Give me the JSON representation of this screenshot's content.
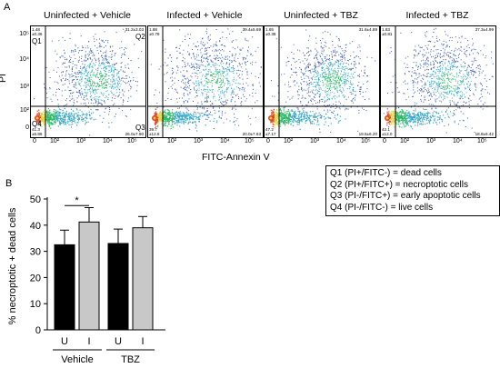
{
  "panel_a": {
    "label": "A",
    "y_axis_label": "PI",
    "x_axis_label": "FITC-Annexin V",
    "y_ticks": [
      "10⁵",
      "10⁴",
      "10³",
      "10²",
      "0"
    ],
    "x_ticks": [
      "0",
      "10²",
      "10³",
      "10⁴",
      "10⁵"
    ],
    "plots": [
      {
        "title": "Uninfected + Vehicle",
        "q1_stats": "1.48\n±0.36",
        "q2_stats": "31.2±3.03",
        "q3_stats": "26.0±7.90",
        "q4_stats": "41.3\n±6.86"
      },
      {
        "title": "Infected + Vehicle",
        "q1_stats": "1.88\n±0.79",
        "q2_stats": "39.4±5.69",
        "q3_stats": "20.0±7.63",
        "q4_stats": "39.7\n±12.8"
      },
      {
        "title": "Uninfected + TBZ",
        "q1_stats": "1.65\n±0.38",
        "q2_stats": "31.6±4.89",
        "q3_stats": "19.5±6.20",
        "q4_stats": "47.2\n±7.17"
      },
      {
        "title": "Infected + TBZ",
        "q1_stats": "1.83\n±0.81",
        "q2_stats": "37.3±4.99",
        "q3_stats": "18.8±6.42",
        "q4_stats": "42.1\n±12.0"
      }
    ],
    "quadrant_labels": {
      "q1": "Q1",
      "q2": "Q2",
      "q3": "Q3",
      "q4": "Q4"
    }
  },
  "panel_b": {
    "label": "B"
  },
  "legend": [
    "Q1 (PI+/FITC-) = dead cells",
    "Q2 (PI+/FITC+) = necroptotic cells",
    "Q3 (PI-/FITC+) = early apoptotic cells",
    "Q4 (PI-/FITC-) = live cells"
  ],
  "colors": {
    "dot_blue": "#3b5bb5",
    "dot_cyan": "#39a9c9",
    "dot_green": "#2fb96a",
    "dot_yellow": "#e6d23a",
    "dot_red": "#e0402a",
    "bar_vehicle_black": "#000000",
    "bar_gray": "#c8c8c8"
  },
  "chart_data": {
    "type": "bar",
    "title": "",
    "ylabel": "% necroptotic + dead cells",
    "xlabel": "",
    "ylim": [
      0,
      50
    ],
    "yticks": [
      0,
      10,
      20,
      30,
      40,
      50
    ],
    "categories": [
      "U",
      "I",
      "U",
      "I"
    ],
    "groups": [
      {
        "label": "Vehicle",
        "categories": [
          "U",
          "I"
        ]
      },
      {
        "label": "TBZ",
        "categories": [
          "U",
          "I"
        ]
      }
    ],
    "values": [
      32.5,
      41.2,
      33.0,
      39.0
    ],
    "errors": [
      5.6,
      5.5,
      5.5,
      4.3
    ],
    "bar_colors": [
      "#000000",
      "#c8c8c8",
      "#000000",
      "#c8c8c8"
    ],
    "significance": [
      {
        "between": [
          0,
          1
        ],
        "label": "*"
      }
    ]
  }
}
